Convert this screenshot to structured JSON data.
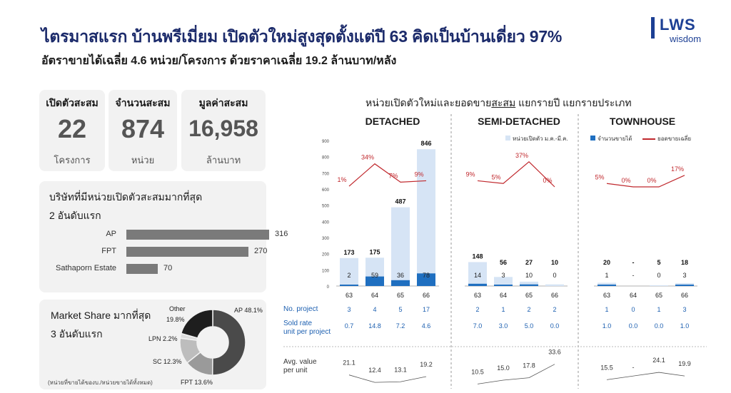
{
  "header": {
    "title": "ไตรมาสแรก บ้านพรีเมี่ยม เปิดตัวใหม่สูงสุดตั้งแต่ปี 63 คิดเป็นบ้านเดี่ยว 97%",
    "subtitle": "อัตราขายได้เฉลี่ย 4.6 หน่วย/โครงการ ด้วยราคาเฉลี่ย 19.2 ล้านบาท/หลัง"
  },
  "logo": {
    "word": "LWS",
    "sub": "wisdom"
  },
  "stats": [
    {
      "label": "เปิดตัวสะสม",
      "value": "22",
      "unit": "โครงการ"
    },
    {
      "label": "จำนวนสะสม",
      "value": "874",
      "unit": "หน่วย"
    },
    {
      "label": "มูลค่าสะสม",
      "value": "16,958",
      "unit": "ล้านบาท"
    }
  ],
  "top_companies": {
    "title_line1": "บริษัทที่มีหน่วยเปิดตัวสะสมมากที่สุด",
    "title_line2": "2 อันดับแรก",
    "items": [
      {
        "name": "AP",
        "value": "316",
        "v": 316
      },
      {
        "name": "FPT",
        "value": "270",
        "v": 270
      },
      {
        "name": "Sathaporn Estate",
        "value": "70",
        "v": 70
      }
    ]
  },
  "market_share": {
    "title_line1": "Market Share มากที่สุด",
    "title_line2": "3 อันดับแรก",
    "note": "(หน่วยที่ขายได้ของบ./หน่วยขายได้ทั้งหมด)",
    "slices": [
      {
        "name": "AP 48.1%",
        "label": "AP 48.1%",
        "value": 48.1,
        "color": "#4a4a4a"
      },
      {
        "name": "FPT 13.6%",
        "label": "FPT 13.6%",
        "value": 13.6,
        "color": "#9a9a9a"
      },
      {
        "name": "SC 12.3%",
        "label": "SC 12.3%",
        "value": 12.3,
        "color": "#bdbdbd"
      },
      {
        "name": "LPN 2.2%",
        "label": "LPN 2.2%",
        "value": 2.2,
        "color": "#dcdcdc"
      },
      {
        "name": "Other 19.8%",
        "label_a": "Other",
        "label_b": "19.8%",
        "value": 19.8,
        "color": "#1e1e1e"
      }
    ]
  },
  "chart": {
    "title_pre": "หน่วยเปิดตัวใหม่และยอดขาย",
    "title_under": "สะสม",
    "title_post": " แยกรายปี แยกรายประเภท",
    "legend_launch": "หน่วยเปิดตัว ม.ค.-มี.ค.",
    "legend_sold": "จำนวนขายได้",
    "legend_rate": "ยอดขายเฉลี่ย",
    "row_labels": {
      "project": "No. project",
      "sold_rate_1": "Sold rate",
      "sold_rate_2": "unit per project",
      "avg_1": "Avg. value",
      "avg_2": "per unit"
    }
  },
  "chart_data": {
    "type": "bar",
    "ylim": [
      0,
      900
    ],
    "yticks": [
      "0",
      "100",
      "200",
      "300",
      "400",
      "500",
      "600",
      "700",
      "800",
      "900"
    ],
    "colors": {
      "launch": "#d6e4f5",
      "sold": "#1f6fc0",
      "line": "#c0282d",
      "avg_line": "#555555"
    },
    "panels": [
      {
        "name": "DETACHED",
        "categories": [
          "63",
          "64",
          "65",
          "66"
        ],
        "launch": [
          173,
          175,
          487,
          846
        ],
        "sold": [
          2,
          59,
          36,
          78
        ],
        "launch_labels": [
          "173",
          "175",
          "487",
          "846"
        ],
        "sold_labels": [
          "2",
          "59",
          "36",
          "78"
        ],
        "rate_labels": [
          "1%",
          "34%",
          "7%",
          "9%"
        ],
        "rate": [
          1,
          34,
          7,
          9
        ],
        "projects": [
          "3",
          "4",
          "5",
          "17"
        ],
        "sold_rate": [
          "0.7",
          "14.8",
          "7.2",
          "4.6"
        ],
        "avg_value": [
          21.1,
          12.4,
          13.1,
          19.2
        ],
        "avg_labels": [
          "21.1",
          "12.4",
          "13.1",
          "19.2"
        ]
      },
      {
        "name": "SEMI-DETACHED",
        "categories": [
          "63",
          "64",
          "65",
          "66"
        ],
        "launch": [
          148,
          56,
          27,
          10
        ],
        "sold": [
          14,
          3,
          10,
          0
        ],
        "launch_labels": [
          "148",
          "56",
          "27",
          "10"
        ],
        "sold_labels": [
          "14",
          "3",
          "10",
          "0"
        ],
        "rate_labels": [
          "9%",
          "5%",
          "37%",
          "0%"
        ],
        "rate": [
          9,
          5,
          37,
          0
        ],
        "projects": [
          "2",
          "1",
          "2",
          "2"
        ],
        "sold_rate": [
          "7.0",
          "3.0",
          "5.0",
          "0.0"
        ],
        "avg_value": [
          10.5,
          15.0,
          17.8,
          33.6
        ],
        "avg_labels": [
          "10.5",
          "15.0",
          "17.8",
          "33.6"
        ]
      },
      {
        "name": "TOWNHOUSE",
        "categories": [
          "63",
          "64",
          "65",
          "66"
        ],
        "launch": [
          20,
          0,
          5,
          18
        ],
        "sold": [
          1,
          0,
          0,
          3
        ],
        "launch_labels": [
          "20",
          "-",
          "5",
          "18"
        ],
        "sold_labels": [
          "1",
          "-",
          "0",
          "3"
        ],
        "rate_labels": [
          "5%",
          "0%",
          "0%",
          "17%"
        ],
        "rate": [
          5,
          0,
          0,
          17
        ],
        "projects": [
          "1",
          "0",
          "1",
          "3"
        ],
        "sold_rate": [
          "1.0",
          "0.0",
          "0.0",
          "1.0"
        ],
        "avg_value": [
          15.5,
          null,
          24.1,
          19.9
        ],
        "avg_labels": [
          "15.5",
          "-",
          "24.1",
          "19.9"
        ]
      }
    ]
  }
}
